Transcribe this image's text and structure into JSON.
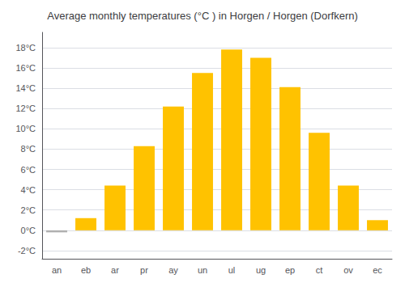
{
  "chart_data": {
    "type": "bar",
    "title": "Average monthly temperatures (°C ) in Horgen / Horgen (Dorfkern)",
    "categories": [
      "an",
      "eb",
      "ar",
      "pr",
      "ay",
      "un",
      "ul",
      "ug",
      "ep",
      "ct",
      "ov",
      "ec"
    ],
    "values": [
      -0.2,
      1.2,
      4.4,
      8.3,
      12.2,
      15.5,
      17.8,
      17.0,
      14.1,
      9.6,
      4.4,
      1.0
    ],
    "colors": [
      "#B0B0B0",
      "#FFC200",
      "#FFC200",
      "#FFC200",
      "#FFC200",
      "#FFC200",
      "#FFC200",
      "#FFC200",
      "#FFC200",
      "#FFC200",
      "#FFC200",
      "#FFC200"
    ],
    "ylim": [
      -2.8,
      19.5
    ],
    "yticks": [
      {
        "value": -2,
        "label": "-2°C"
      },
      {
        "value": 0,
        "label": "0°C"
      },
      {
        "value": 2,
        "label": "2°C"
      },
      {
        "value": 4,
        "label": "4°C"
      },
      {
        "value": 6,
        "label": "6°C"
      },
      {
        "value": 8,
        "label": "8°C"
      },
      {
        "value": 10,
        "label": "10°C"
      },
      {
        "value": 12,
        "label": "12°C"
      },
      {
        "value": 14,
        "label": "14°C"
      },
      {
        "value": 16,
        "label": "16°C"
      },
      {
        "value": 18,
        "label": "18°C"
      }
    ],
    "grid": true
  }
}
